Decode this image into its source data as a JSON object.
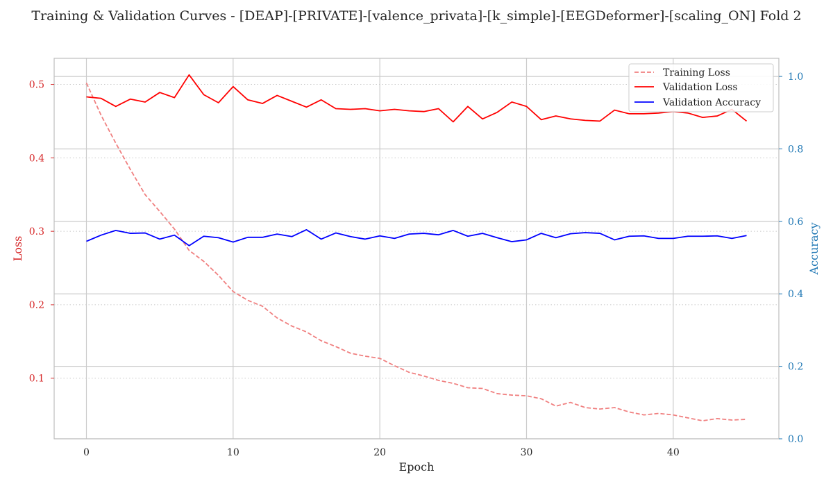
{
  "chart_data": {
    "type": "line",
    "title": "Training & Validation Curves - [DEAP]-[PRIVATE]-[valence_privata]-[k_simple]-[EEGDeformer]-[scaling_ON] Fold 2",
    "xlabel": "Epoch",
    "ylabel_left": "Loss",
    "ylabel_right": "Accuracy",
    "xlim": [
      -2.2,
      47.2
    ],
    "ylim_left": [
      0.0175,
      0.5355
    ],
    "ylim_right": [
      0.0,
      1.05
    ],
    "x_ticks": [
      0,
      10,
      20,
      30,
      40
    ],
    "y_left_ticks": [
      0.1,
      0.2,
      0.3,
      0.4,
      0.5
    ],
    "y_right_ticks": [
      0.0,
      0.2,
      0.4,
      0.6,
      0.8,
      1.0
    ],
    "grid": true,
    "legend_position": "top-right",
    "colors": {
      "training_loss": "#f08080",
      "validation_loss": "#ff0000",
      "validation_accuracy": "#0000ff",
      "left_axis": "#d62728",
      "right_axis": "#1f77b4"
    },
    "x": [
      0,
      1,
      2,
      3,
      4,
      5,
      6,
      7,
      8,
      9,
      10,
      11,
      12,
      13,
      14,
      15,
      16,
      17,
      18,
      19,
      20,
      21,
      22,
      23,
      24,
      25,
      26,
      27,
      28,
      29,
      30,
      31,
      32,
      33,
      34,
      35,
      36,
      37,
      38,
      39,
      40,
      41,
      42,
      43,
      44,
      45
    ],
    "series": [
      {
        "name": "Training Loss",
        "axis": "left",
        "style": "dashed",
        "values": [
          0.502,
          0.458,
          0.42,
          0.384,
          0.35,
          0.327,
          0.303,
          0.274,
          0.259,
          0.24,
          0.218,
          0.206,
          0.198,
          0.182,
          0.171,
          0.163,
          0.151,
          0.143,
          0.134,
          0.13,
          0.127,
          0.117,
          0.108,
          0.103,
          0.097,
          0.093,
          0.087,
          0.086,
          0.079,
          0.077,
          0.076,
          0.072,
          0.062,
          0.067,
          0.06,
          0.058,
          0.06,
          0.054,
          0.05,
          0.052,
          0.05,
          0.046,
          0.042,
          0.045,
          0.043,
          0.044
        ]
      },
      {
        "name": "Validation Loss",
        "axis": "left",
        "style": "solid",
        "values": [
          0.483,
          0.481,
          0.47,
          0.48,
          0.476,
          0.489,
          0.482,
          0.513,
          0.486,
          0.475,
          0.497,
          0.479,
          0.474,
          0.485,
          0.477,
          0.469,
          0.479,
          0.467,
          0.466,
          0.467,
          0.464,
          0.466,
          0.464,
          0.463,
          0.467,
          0.449,
          0.47,
          0.453,
          0.462,
          0.476,
          0.47,
          0.452,
          0.457,
          0.453,
          0.451,
          0.45,
          0.465,
          0.46,
          0.46,
          0.461,
          0.463,
          0.461,
          0.455,
          0.457,
          0.466,
          0.45
        ]
      },
      {
        "name": "Validation Accuracy",
        "axis": "right",
        "style": "solid",
        "values": [
          0.545,
          0.562,
          0.575,
          0.567,
          0.568,
          0.551,
          0.562,
          0.533,
          0.559,
          0.555,
          0.543,
          0.556,
          0.556,
          0.565,
          0.558,
          0.577,
          0.551,
          0.568,
          0.558,
          0.551,
          0.56,
          0.553,
          0.565,
          0.567,
          0.563,
          0.575,
          0.559,
          0.567,
          0.555,
          0.544,
          0.549,
          0.567,
          0.555,
          0.566,
          0.569,
          0.567,
          0.549,
          0.559,
          0.56,
          0.553,
          0.553,
          0.559,
          0.559,
          0.56,
          0.553,
          0.561
        ]
      }
    ]
  }
}
